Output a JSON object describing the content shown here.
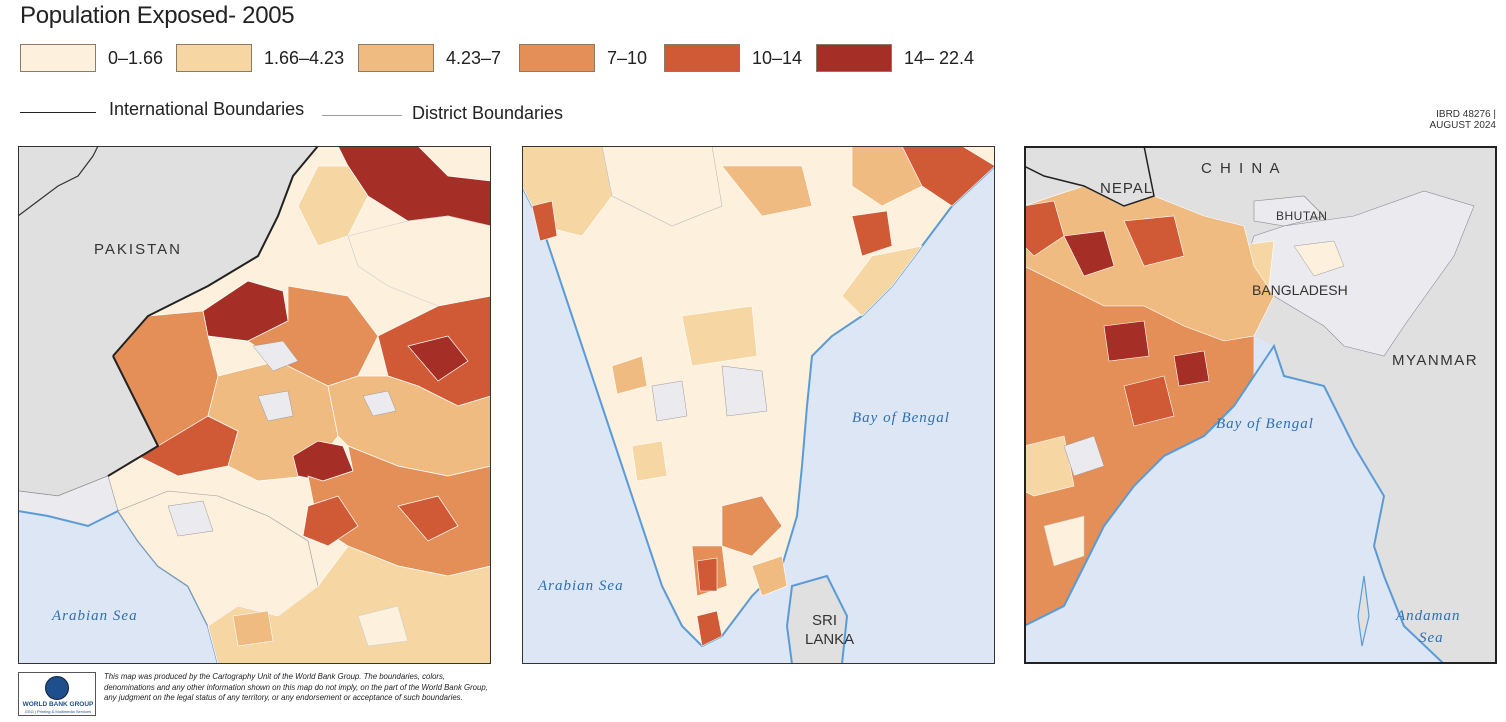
{
  "title": "Population Exposed- 2005",
  "legend": {
    "classes": [
      {
        "label": "0–1.66",
        "color": "#fdf0dc"
      },
      {
        "label": "1.66–4.23",
        "color": "#f6d6a2"
      },
      {
        "label": "4.23–7",
        "color": "#efbb80"
      },
      {
        "label": "7–10",
        "color": "#e48f57"
      },
      {
        "label": "10–14",
        "color": "#d05a36"
      },
      {
        "label": "14– 22.4",
        "color": "#a52f26"
      }
    ],
    "nodata_color": "#ebebef"
  },
  "boundaries": {
    "international_label": "International Boundaries",
    "district_label": "District Boundaries"
  },
  "map_ref": {
    "id": "IBRD 48276 |",
    "date": "AUGUST 2024"
  },
  "colors": {
    "water": "#dce6f5",
    "coast": "#5b9bd5",
    "outside_land": "#e0e0e0",
    "sea_label": "#2f6fad"
  },
  "panels": {
    "west": {
      "labels": {
        "country": "PAKISTAN",
        "sea": "Arabian Sea"
      }
    },
    "south": {
      "labels": {
        "sea_west": "Arabian Sea",
        "sea_east": "Bay of Bengal",
        "island_1": "SRI",
        "island_2": "LANKA"
      }
    },
    "east": {
      "labels": {
        "china": "C H I N A",
        "nepal": "NEPAL",
        "bhutan": "BHUTAN",
        "bangladesh": "BANGLADESH",
        "myanmar": "MYANMAR",
        "sea_1": "Bay of Bengal",
        "sea_2_a": "Andaman",
        "sea_2_b": "Sea"
      }
    }
  },
  "footer": {
    "logo_name": "WORLD BANK GROUP",
    "logo_sub": "GSG | Printing & Multimedia Services",
    "disclaimer": "This map was produced by the Cartography Unit of the World Bank Group. The boundaries, colors, denominations and any other information shown on this map do not imply, on the part of the World Bank Group, any judgment on the legal status of any territory, or any endorsement or acceptance of such boundaries."
  }
}
